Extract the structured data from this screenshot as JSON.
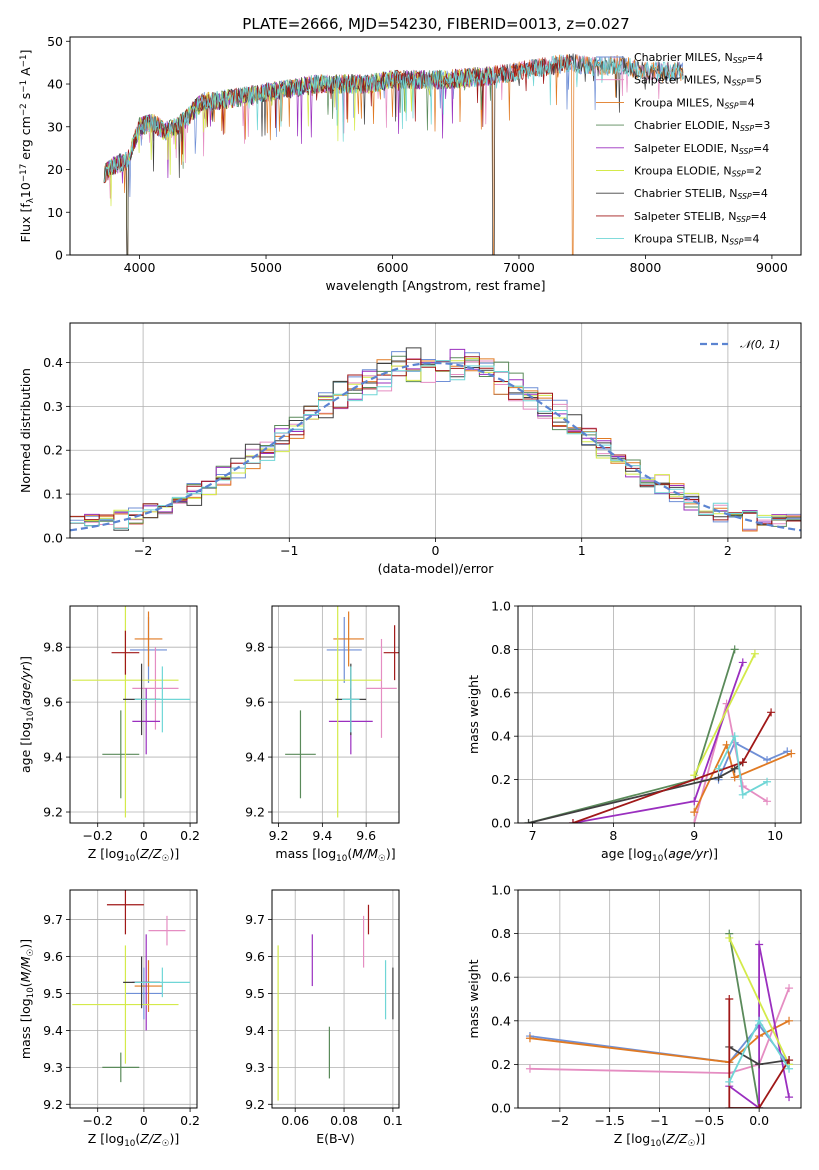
{
  "figure_title": "PLATE=2666, MJD=54230, FIBERID=0013, z=0.027",
  "colors": {
    "Chabrier MILES": "#6f8fd6",
    "Salpeter MILES": "#e58dc2",
    "Kroupa MILES": "#e07a23",
    "Chabrier ELODIE": "#5a8a5a",
    "Salpeter ELODIE": "#9a2fbf",
    "Kroupa ELODIE": "#d4ea4a",
    "Chabrier STELIB": "#404040",
    "Salpeter STELIB": "#a01818",
    "Kroupa STELIB": "#6fd6d6",
    "normal": "#5b84d1"
  },
  "chart_data": [
    {
      "id": "spectrum",
      "type": "line",
      "xlabel": "wavelength [Angstrom, rest frame]",
      "ylabel": "Flux [f_λ10^-17 erg cm^-2 s^-1 A^-1]",
      "xlim": [
        3450,
        9230
      ],
      "ylim": [
        0,
        51
      ],
      "xticks": [
        4000,
        5000,
        6000,
        7000,
        8000,
        9000
      ],
      "yticks": [
        0,
        10,
        20,
        30,
        40,
        50
      ],
      "grid": false,
      "legend_position": "right",
      "continuum": [
        [
          3720,
          19
        ],
        [
          3800,
          21
        ],
        [
          3900,
          22
        ],
        [
          4000,
          30
        ],
        [
          4100,
          31
        ],
        [
          4200,
          29
        ],
        [
          4300,
          30
        ],
        [
          4400,
          33
        ],
        [
          4500,
          36
        ],
        [
          4600,
          36
        ],
        [
          4800,
          37
        ],
        [
          5000,
          38
        ],
        [
          5200,
          39
        ],
        [
          5400,
          40
        ],
        [
          5600,
          40
        ],
        [
          5800,
          40
        ],
        [
          6000,
          41
        ],
        [
          6200,
          41
        ],
        [
          6400,
          41
        ],
        [
          6600,
          41.5
        ],
        [
          6800,
          42
        ],
        [
          7000,
          43
        ],
        [
          7200,
          44
        ],
        [
          7400,
          45
        ],
        [
          7600,
          44
        ],
        [
          7800,
          44.5
        ],
        [
          8000,
          43
        ]
      ],
      "series": [
        {
          "name": "Chabrier MILES, N_SSP=4",
          "end": 8300,
          "drops": []
        },
        {
          "name": "Salpeter MILES, N_SSP=5",
          "end": 8300,
          "drops": []
        },
        {
          "name": "Kroupa MILES, N_SSP=4",
          "end": 8300,
          "drops": [
            [
              3900,
              3905
            ],
            [
              6795,
              6800
            ],
            [
              7420,
              7425
            ]
          ]
        },
        {
          "name": "Chabrier ELODIE, N_SSP=3",
          "end": 6795,
          "drops": [
            [
              3900,
              3905
            ]
          ]
        },
        {
          "name": "Salpeter ELODIE, N_SSP=4",
          "end": 6795,
          "drops": [
            [
              3900,
              3905
            ]
          ]
        },
        {
          "name": "Kroupa ELODIE, N_SSP=2",
          "end": 6795,
          "drops": [
            [
              3900,
              3905
            ],
            [
              6795,
              6800
            ]
          ]
        },
        {
          "name": "Chabrier STELIB, N_SSP=4",
          "end": 8300,
          "drops": [
            [
              3900,
              3905
            ],
            [
              6790,
              6800
            ]
          ]
        },
        {
          "name": "Salpeter STELIB, N_SSP=4",
          "end": 7420,
          "drops": [
            [
              7420,
              7425
            ]
          ]
        },
        {
          "name": "Kroupa STELIB, N_SSP=4",
          "end": 8300,
          "drops": []
        }
      ]
    },
    {
      "id": "residuals",
      "type": "step",
      "xlabel": "(data-model)/error",
      "ylabel": "Normed distribution",
      "xlim": [
        -2.5,
        2.5
      ],
      "ylim": [
        0,
        0.49
      ],
      "xticks": [
        -2,
        -1,
        0,
        1,
        2
      ],
      "yticks": [
        0.0,
        0.1,
        0.2,
        0.3,
        0.4
      ],
      "grid": true,
      "legend_position": "top-right",
      "normal_label": "N(0,1)",
      "bin_width": 0.1,
      "n_series": 9
    },
    {
      "id": "age_vs_Z",
      "type": "errorbar",
      "xlabel": "Z [log10(Z/Z☉)]",
      "ylabel": "age [log10(age/yr)]",
      "xlim": [
        -0.32,
        0.23
      ],
      "ylim": [
        9.16,
        9.95
      ],
      "xticks": [
        -0.2,
        0.0,
        0.2
      ],
      "yticks": [
        9.2,
        9.4,
        9.6,
        9.8
      ],
      "grid": true,
      "points": [
        {
          "series": "Chabrier MILES",
          "x": 0.02,
          "xerr": 0.08,
          "y": 9.79,
          "yerr": 0.12
        },
        {
          "series": "Salpeter MILES",
          "x": 0.05,
          "xerr": 0.1,
          "y": 9.65,
          "yerr": 0.15
        },
        {
          "series": "Kroupa MILES",
          "x": 0.02,
          "xerr": 0.06,
          "y": 9.83,
          "yerr": 0.1
        },
        {
          "series": "Chabrier ELODIE",
          "x": -0.1,
          "xerr": 0.08,
          "y": 9.41,
          "yerr": 0.16
        },
        {
          "series": "Salpeter ELODIE",
          "x": 0.01,
          "xerr": 0.06,
          "y": 9.53,
          "yerr": 0.12
        },
        {
          "series": "Kroupa ELODIE",
          "x": -0.08,
          "xerr": 0.23,
          "y": 9.68,
          "yerr": 0.5
        },
        {
          "series": "Chabrier STELIB",
          "x": -0.01,
          "xerr": 0.08,
          "y": 9.61,
          "yerr": 0.13
        },
        {
          "series": "Salpeter STELIB",
          "x": -0.08,
          "xerr": 0.06,
          "y": 9.78,
          "yerr": 0.08
        },
        {
          "series": "Kroupa STELIB",
          "x": 0.08,
          "xerr": 0.12,
          "y": 9.61,
          "yerr": 0.12
        }
      ]
    },
    {
      "id": "age_vs_mass",
      "type": "errorbar",
      "xlabel": "mass [log10(M/M☉)]",
      "ylabel": "",
      "xlim": [
        9.17,
        9.75
      ],
      "ylim": [
        9.16,
        9.95
      ],
      "xticks": [
        9.2,
        9.4,
        9.6
      ],
      "yticks": [
        9.2,
        9.4,
        9.6,
        9.8
      ],
      "grid": true,
      "points": [
        {
          "series": "Chabrier MILES",
          "x": 9.5,
          "xerr": 0.08,
          "y": 9.79,
          "yerr": 0.12
        },
        {
          "series": "Salpeter MILES",
          "x": 9.67,
          "xerr": 0.07,
          "y": 9.65,
          "yerr": 0.18
        },
        {
          "series": "Kroupa MILES",
          "x": 9.52,
          "xerr": 0.07,
          "y": 9.83,
          "yerr": 0.1
        },
        {
          "series": "Chabrier ELODIE",
          "x": 9.3,
          "xerr": 0.07,
          "y": 9.41,
          "yerr": 0.16
        },
        {
          "series": "Salpeter ELODIE",
          "x": 9.53,
          "xerr": 0.1,
          "y": 9.53,
          "yerr": 0.12
        },
        {
          "series": "Kroupa ELODIE",
          "x": 9.47,
          "xerr": 0.2,
          "y": 9.68,
          "yerr": 0.5
        },
        {
          "series": "Chabrier STELIB",
          "x": 9.53,
          "xerr": 0.07,
          "y": 9.61,
          "yerr": 0.13
        },
        {
          "series": "Salpeter STELIB",
          "x": 9.73,
          "xerr": 0.05,
          "y": 9.78,
          "yerr": 0.1
        },
        {
          "series": "Kroupa STELIB",
          "x": 9.53,
          "xerr": 0.04,
          "y": 9.61,
          "yerr": 0.12
        }
      ]
    },
    {
      "id": "weight_vs_age",
      "type": "line",
      "xlabel": "age [log10(age/yr)]",
      "ylabel": "mass weight",
      "xlim": [
        6.82,
        10.32
      ],
      "ylim": [
        0,
        1.0
      ],
      "xticks": [
        7,
        8,
        9,
        10
      ],
      "yticks": [
        0.0,
        0.2,
        0.4,
        0.6,
        0.8,
        1.0
      ],
      "grid": true,
      "series": [
        {
          "name": "Chabrier MILES",
          "x": [
            9.3,
            9.5,
            9.9,
            10.15
          ],
          "y": [
            0.2,
            0.37,
            0.29,
            0.33
          ]
        },
        {
          "name": "Salpeter MILES",
          "x": [
            9.0,
            9.4,
            9.6,
            9.9
          ],
          "y": [
            0.0,
            0.55,
            0.17,
            0.1
          ]
        },
        {
          "name": "Kroupa MILES",
          "x": [
            9.0,
            9.4,
            9.5,
            10.2
          ],
          "y": [
            0.05,
            0.36,
            0.21,
            0.32
          ]
        },
        {
          "name": "Chabrier ELODIE",
          "x": [
            6.95,
            9.0,
            9.5
          ],
          "y": [
            0.0,
            0.2,
            0.8
          ]
        },
        {
          "name": "Salpeter ELODIE",
          "x": [
            7.5,
            9.0,
            9.6
          ],
          "y": [
            0.0,
            0.1,
            0.74
          ]
        },
        {
          "name": "Kroupa ELODIE",
          "x": [
            9.0,
            9.75
          ],
          "y": [
            0.22,
            0.78
          ]
        },
        {
          "name": "Chabrier STELIB",
          "x": [
            6.95,
            9.3,
            9.5,
            9.6
          ],
          "y": [
            0.0,
            0.21,
            0.25,
            0.28
          ]
        },
        {
          "name": "Salpeter STELIB",
          "x": [
            7.5,
            9.6,
            9.95
          ],
          "y": [
            0.0,
            0.28,
            0.51
          ]
        },
        {
          "name": "Kroupa STELIB",
          "x": [
            9.3,
            9.5,
            9.6,
            9.9
          ],
          "y": [
            0.25,
            0.4,
            0.13,
            0.19
          ]
        }
      ]
    },
    {
      "id": "mass_vs_Z",
      "type": "errorbar",
      "xlabel": "Z [log10(Z/Z☉)]",
      "ylabel": "mass [log10(M/M☉)]",
      "xlim": [
        -0.32,
        0.23
      ],
      "ylim": [
        9.19,
        9.78
      ],
      "xticks": [
        -0.2,
        0.0,
        0.2
      ],
      "yticks": [
        9.2,
        9.3,
        9.4,
        9.5,
        9.6,
        9.7
      ],
      "grid": true,
      "points": [
        {
          "series": "Chabrier MILES",
          "x": 0.0,
          "xerr": 0.08,
          "y": 9.5,
          "yerr": 0.07
        },
        {
          "series": "Salpeter MILES",
          "x": 0.1,
          "xerr": 0.08,
          "y": 9.67,
          "yerr": 0.04
        },
        {
          "series": "Kroupa MILES",
          "x": 0.02,
          "xerr": 0.06,
          "y": 9.52,
          "yerr": 0.07
        },
        {
          "series": "Chabrier ELODIE",
          "x": -0.1,
          "xerr": 0.08,
          "y": 9.3,
          "yerr": 0.04
        },
        {
          "series": "Salpeter ELODIE",
          "x": 0.01,
          "xerr": 0.06,
          "y": 9.53,
          "yerr": 0.13
        },
        {
          "series": "Kroupa ELODIE",
          "x": -0.08,
          "xerr": 0.23,
          "y": 9.47,
          "yerr": 0.16
        },
        {
          "series": "Chabrier STELIB",
          "x": -0.01,
          "xerr": 0.08,
          "y": 9.53,
          "yerr": 0.07
        },
        {
          "series": "Salpeter STELIB",
          "x": -0.08,
          "xerr": 0.08,
          "y": 9.74,
          "yerr": 0.08
        },
        {
          "series": "Kroupa STELIB",
          "x": 0.08,
          "xerr": 0.12,
          "y": 9.53,
          "yerr": 0.04
        }
      ]
    },
    {
      "id": "mass_vs_ebv",
      "type": "errorbar",
      "xlabel": "E(B-V)",
      "ylabel": "",
      "xlim": [
        0.0505,
        0.1025
      ],
      "ylim": [
        9.19,
        9.78
      ],
      "xticks": [
        0.06,
        0.08,
        0.1
      ],
      "yticks": [
        9.2,
        9.3,
        9.4,
        9.5,
        9.6,
        9.7
      ],
      "grid": true,
      "points": [
        {
          "series": "Salpeter MILES",
          "x": 0.088,
          "xerr": 0,
          "y": 9.64,
          "yerr": 0.07
        },
        {
          "series": "Chabrier ELODIE",
          "x": 0.074,
          "xerr": 0,
          "y": 9.34,
          "yerr": 0.07
        },
        {
          "series": "Salpeter ELODIE",
          "x": 0.067,
          "xerr": 0,
          "y": 9.59,
          "yerr": 0.07
        },
        {
          "series": "Kroupa ELODIE",
          "x": 0.053,
          "xerr": 0,
          "y": 9.42,
          "yerr": 0.21
        },
        {
          "series": "Chabrier STELIB",
          "x": 0.1,
          "xerr": 0,
          "y": 9.5,
          "yerr": 0.07
        },
        {
          "series": "Salpeter STELIB",
          "x": 0.09,
          "xerr": 0,
          "y": 9.7,
          "yerr": 0.04
        },
        {
          "series": "Kroupa STELIB",
          "x": 0.097,
          "xerr": 0,
          "y": 9.51,
          "yerr": 0.08
        }
      ]
    },
    {
      "id": "weight_vs_Z",
      "type": "line",
      "xlabel": "Z [log10(Z/Z☉)]",
      "ylabel": "mass weight",
      "xlim": [
        -2.42,
        0.42
      ],
      "ylim": [
        0,
        1.0
      ],
      "xticks": [
        -2.0,
        -1.5,
        -1.0,
        -0.5,
        0.0
      ],
      "yticks": [
        0.0,
        0.2,
        0.4,
        0.6,
        0.8,
        1.0
      ],
      "grid": true,
      "series": [
        {
          "name": "Chabrier MILES",
          "x": [
            -2.3,
            -0.3,
            0.0,
            0.3
          ],
          "y": [
            0.33,
            0.21,
            0.38,
            0.2
          ]
        },
        {
          "name": "Salpeter MILES",
          "x": [
            -2.3,
            -0.3,
            0.0,
            0.3
          ],
          "y": [
            0.18,
            0.16,
            0.2,
            0.55
          ]
        },
        {
          "name": "Kroupa MILES",
          "x": [
            -2.3,
            -0.3,
            0.0,
            0.3
          ],
          "y": [
            0.32,
            0.21,
            0.33,
            0.4
          ]
        },
        {
          "name": "Chabrier ELODIE",
          "x": [
            -0.3,
            0.0
          ],
          "y": [
            0.8,
            0.0
          ]
        },
        {
          "name": "Salpeter ELODIE",
          "x": [
            -0.3,
            0.0,
            0.0,
            0.3
          ],
          "y": [
            0.1,
            0.0,
            0.75,
            0.05
          ]
        },
        {
          "name": "Kroupa ELODIE",
          "x": [
            -0.3,
            0.3
          ],
          "y": [
            0.78,
            0.2
          ]
        },
        {
          "name": "Chabrier STELIB",
          "x": [
            -0.3,
            0.0,
            0.3
          ],
          "y": [
            0.28,
            0.2,
            0.22
          ]
        },
        {
          "name": "Salpeter STELIB",
          "x": [
            -0.3,
            -0.3,
            0.0,
            0.3
          ],
          "y": [
            0.5,
            0.0,
            0.0,
            0.22
          ]
        },
        {
          "name": "Kroupa STELIB",
          "x": [
            -0.3,
            0.0,
            0.3
          ],
          "y": [
            0.12,
            0.4,
            0.18
          ]
        }
      ]
    }
  ]
}
